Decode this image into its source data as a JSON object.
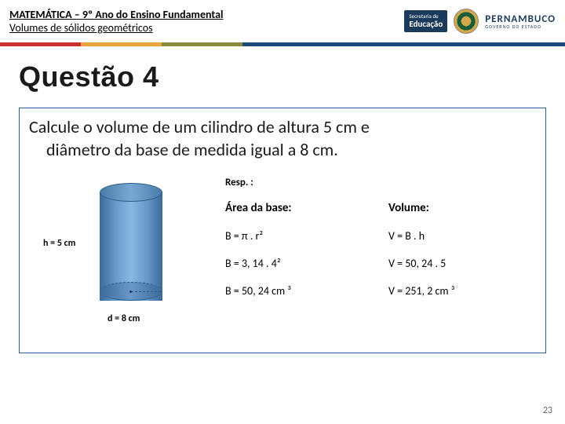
{
  "header": {
    "title": "MATEMÁTICA – 9º Ano do Ensino Fundamental",
    "subtitle": "Volumes de sólidos geométricos",
    "secretaria_small": "Secretaria de",
    "secretaria_big": "Educação",
    "brand_main": "PERNAMBUCO",
    "brand_sub": "GOVERNO DO ESTADO"
  },
  "color_bar": {
    "c1": "#c9302c",
    "c2": "#e8a33d",
    "c3": "#8a8a3d",
    "c4": "#1a4a7a"
  },
  "question": {
    "title": "Questão 4",
    "text_line1": "Calcule o volume de um cilindro de altura  5 cm e",
    "text_line2": "diâmetro da base de medida igual a 8 cm.",
    "resp_label": "Resp. :",
    "h_label": "h = 5 cm",
    "d_label": "d = 8 cm",
    "cylinder_colors": {
      "light": "#8ab8e4",
      "mid": "#6a98c8",
      "dark": "#3a6a98",
      "outline": "#2a5c8a"
    },
    "answers": {
      "area_header": "Área da base:",
      "volume_header": "Volume:",
      "b_formula": "B = π . r²",
      "v_formula": "V = B . h",
      "b_step": "B = 3, 14 . 4²",
      "v_step": "V = 50, 24 . 5",
      "b_result": "B = 50, 24 cm ³",
      "v_result": "V = 251, 2 cm ³"
    }
  },
  "page_number": "23"
}
